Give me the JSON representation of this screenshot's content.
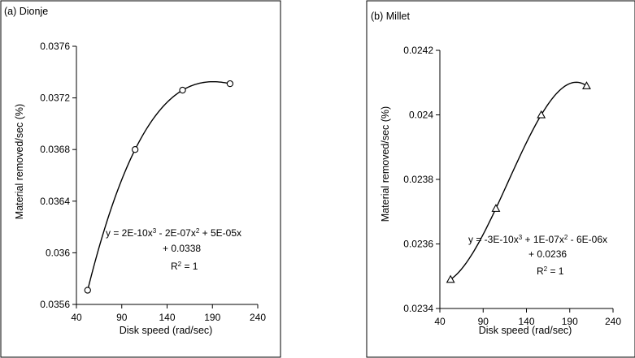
{
  "chart_data": [
    {
      "type": "scatter",
      "title": "(a) Dionje",
      "xlabel": "Disk speed (rad/sec)",
      "ylabel": "Material removed/sec (%)",
      "xlim": [
        40,
        240
      ],
      "ylim": [
        0.0356,
        0.0376
      ],
      "xticks": [
        "40",
        "90",
        "140",
        "190",
        "240"
      ],
      "yticks": [
        "0.0356",
        "0.036",
        "0.0364",
        "0.0368",
        "0.0372",
        "0.0376"
      ],
      "marker": "circle",
      "x": [
        52.36,
        104.72,
        157.08,
        209.44
      ],
      "y": [
        0.03571,
        0.0368,
        0.03726,
        0.03731
      ],
      "trendline": {
        "type": "polynomial-3",
        "equation_line1": "y = 2E-10x^3 - 2E-07x^2 + 5E-05x",
        "equation_line2": "+ 0.0338",
        "r2": "R^2 = 1"
      }
    },
    {
      "type": "scatter",
      "title": "(b) Millet",
      "xlabel": "Disk  speed (rad/sec)",
      "ylabel": "Material removed/sec (%)",
      "xlim": [
        40,
        240
      ],
      "ylim": [
        0.0234,
        0.0242
      ],
      "xticks": [
        "40",
        "90",
        "140",
        "190",
        "240"
      ],
      "yticks": [
        "0.0234",
        "0.0236",
        "0.0238",
        "0.024",
        "0.0242"
      ],
      "marker": "triangle",
      "x": [
        52.36,
        104.72,
        157.08,
        209.44
      ],
      "y": [
        0.02349,
        0.02371,
        0.024,
        0.02409
      ],
      "trendline": {
        "type": "polynomial-3",
        "equation_line1": "y = -3E-10x^3 + 1E-07x^2 - 6E-06x",
        "equation_line2": "+ 0.0236",
        "r2": "R^2 = 1"
      }
    }
  ]
}
